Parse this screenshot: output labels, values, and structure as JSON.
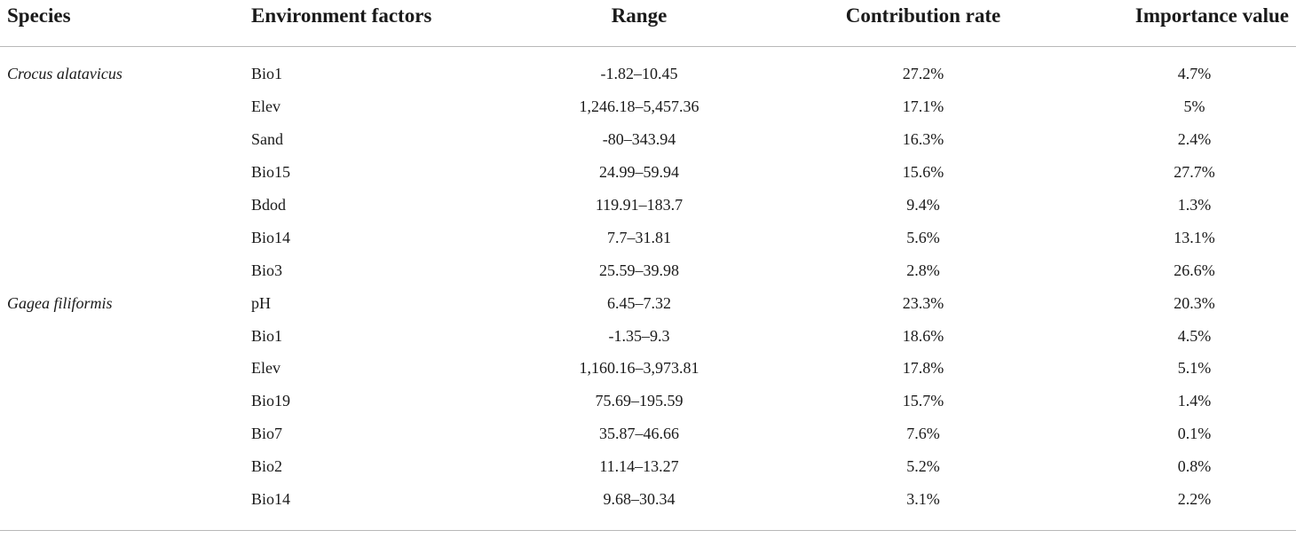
{
  "table": {
    "headers": [
      "Species",
      "Environment factors",
      "Range",
      "Contribution rate",
      "Importance value"
    ],
    "groups": [
      {
        "species": "Crocus alatavicus",
        "rows": [
          {
            "factor": "Bio1",
            "range": "-1.82–10.45",
            "contribution": "27.2%",
            "importance": "4.7%"
          },
          {
            "factor": "Elev",
            "range": "1,246.18–5,457.36",
            "contribution": "17.1%",
            "importance": "5%"
          },
          {
            "factor": "Sand",
            "range": "-80–343.94",
            "contribution": "16.3%",
            "importance": "2.4%"
          },
          {
            "factor": "Bio15",
            "range": "24.99–59.94",
            "contribution": "15.6%",
            "importance": "27.7%"
          },
          {
            "factor": "Bdod",
            "range": "119.91–183.7",
            "contribution": "9.4%",
            "importance": "1.3%"
          },
          {
            "factor": "Bio14",
            "range": "7.7–31.81",
            "contribution": "5.6%",
            "importance": "13.1%"
          },
          {
            "factor": "Bio3",
            "range": "25.59–39.98",
            "contribution": "2.8%",
            "importance": "26.6%"
          }
        ]
      },
      {
        "species": "Gagea filiformis",
        "rows": [
          {
            "factor": "pH",
            "range": "6.45–7.32",
            "contribution": "23.3%",
            "importance": "20.3%"
          },
          {
            "factor": "Bio1",
            "range": "-1.35–9.3",
            "contribution": "18.6%",
            "importance": "4.5%"
          },
          {
            "factor": "Elev",
            "range": "1,160.16–3,973.81",
            "contribution": "17.8%",
            "importance": "5.1%"
          },
          {
            "factor": "Bio19",
            "range": "75.69–195.59",
            "contribution": "15.7%",
            "importance": "1.4%"
          },
          {
            "factor": "Bio7",
            "range": "35.87–46.66",
            "contribution": "7.6%",
            "importance": "0.1%"
          },
          {
            "factor": "Bio2",
            "range": "11.14–13.27",
            "contribution": "5.2%",
            "importance": "0.8%"
          },
          {
            "factor": "Bio14",
            "range": "9.68–30.34",
            "contribution": "3.1%",
            "importance": "2.2%"
          }
        ]
      }
    ]
  }
}
